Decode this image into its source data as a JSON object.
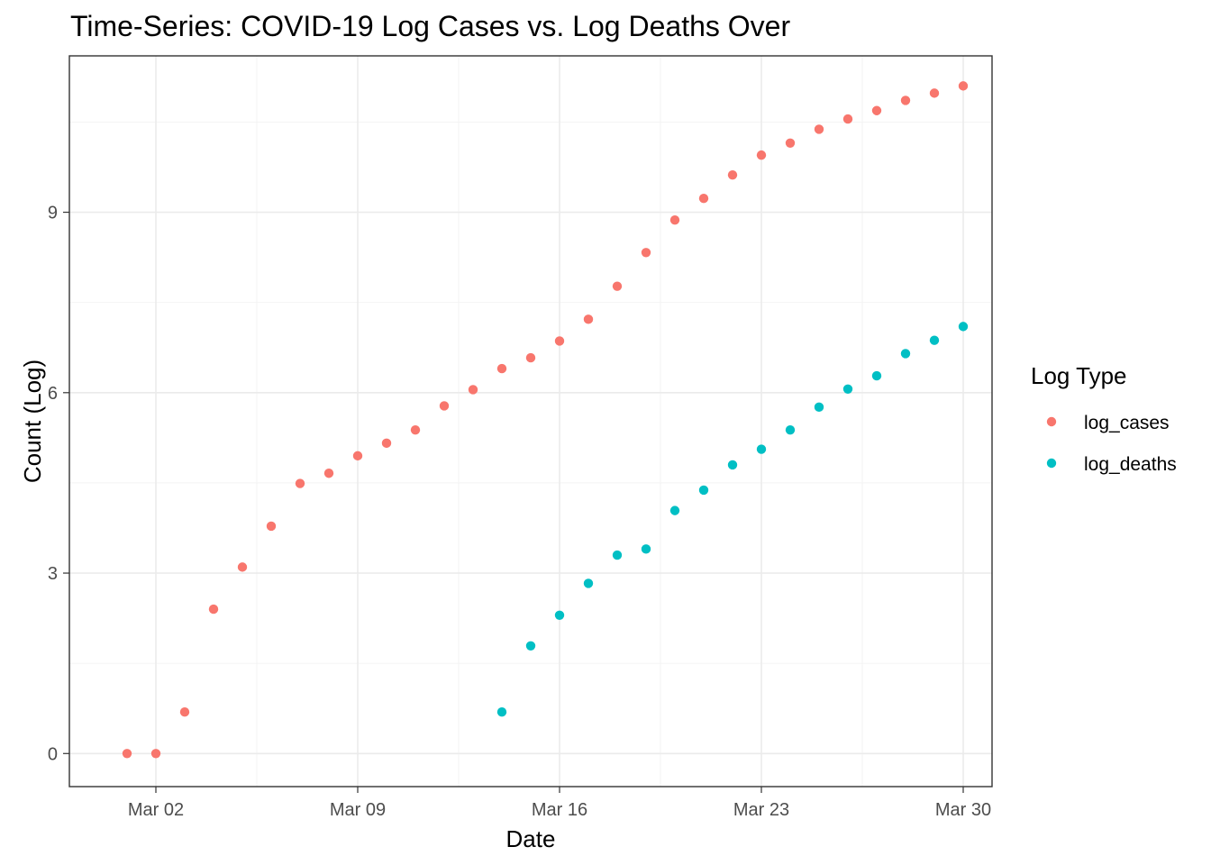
{
  "chart_data": {
    "type": "scatter",
    "title": "Time-Series: COVID-19 Log Cases vs. Log Deaths Over",
    "xlabel": "Date",
    "ylabel": "Count (Log)",
    "x_axis_type": "date",
    "xlim": [
      "2020-02-28",
      "2020-03-31"
    ],
    "ylim": [
      -0.55,
      11.6
    ],
    "x_ticks": [
      {
        "date": "2020-03-02",
        "label": "Mar 02"
      },
      {
        "date": "2020-03-09",
        "label": "Mar 09"
      },
      {
        "date": "2020-03-16",
        "label": "Mar 16"
      },
      {
        "date": "2020-03-23",
        "label": "Mar 23"
      },
      {
        "date": "2020-03-30",
        "label": "Mar 30"
      }
    ],
    "y_ticks": [
      {
        "value": 0,
        "label": "0"
      },
      {
        "value": 3,
        "label": "3"
      },
      {
        "value": 6,
        "label": "6"
      },
      {
        "value": 9,
        "label": "9"
      }
    ],
    "grid": true,
    "legend": {
      "title": "Log Type",
      "position": "right"
    },
    "series": [
      {
        "name": "log_cases",
        "color": "#F8766D",
        "points": [
          {
            "x": "2020-03-01",
            "y": 0.0
          },
          {
            "x": "2020-03-02",
            "y": 0.0
          },
          {
            "x": "2020-03-03",
            "y": 0.69
          },
          {
            "x": "2020-03-04",
            "y": 2.4
          },
          {
            "x": "2020-03-05",
            "y": 3.1
          },
          {
            "x": "2020-03-06",
            "y": 3.78
          },
          {
            "x": "2020-03-07",
            "y": 4.49
          },
          {
            "x": "2020-03-08",
            "y": 4.66
          },
          {
            "x": "2020-03-09",
            "y": 4.95
          },
          {
            "x": "2020-03-10",
            "y": 5.16
          },
          {
            "x": "2020-03-11",
            "y": 5.38
          },
          {
            "x": "2020-03-12",
            "y": 5.78
          },
          {
            "x": "2020-03-13",
            "y": 6.05
          },
          {
            "x": "2020-03-14",
            "y": 6.4
          },
          {
            "x": "2020-03-15",
            "y": 6.58
          },
          {
            "x": "2020-03-16",
            "y": 6.86
          },
          {
            "x": "2020-03-17",
            "y": 7.22
          },
          {
            "x": "2020-03-18",
            "y": 7.77
          },
          {
            "x": "2020-03-19",
            "y": 8.33
          },
          {
            "x": "2020-03-20",
            "y": 8.87
          },
          {
            "x": "2020-03-21",
            "y": 9.23
          },
          {
            "x": "2020-03-22",
            "y": 9.62
          },
          {
            "x": "2020-03-23",
            "y": 9.95
          },
          {
            "x": "2020-03-24",
            "y": 10.15
          },
          {
            "x": "2020-03-25",
            "y": 10.38
          },
          {
            "x": "2020-03-26",
            "y": 10.55
          },
          {
            "x": "2020-03-27",
            "y": 10.69
          },
          {
            "x": "2020-03-28",
            "y": 10.86
          },
          {
            "x": "2020-03-29",
            "y": 10.98
          },
          {
            "x": "2020-03-30",
            "y": 11.1
          }
        ]
      },
      {
        "name": "log_deaths",
        "color": "#00BFC4",
        "points": [
          {
            "x": "2020-03-14",
            "y": 0.69
          },
          {
            "x": "2020-03-15",
            "y": 1.79
          },
          {
            "x": "2020-03-16",
            "y": 2.3
          },
          {
            "x": "2020-03-17",
            "y": 2.83
          },
          {
            "x": "2020-03-18",
            "y": 3.3
          },
          {
            "x": "2020-03-19",
            "y": 3.4
          },
          {
            "x": "2020-03-20",
            "y": 4.04
          },
          {
            "x": "2020-03-21",
            "y": 4.38
          },
          {
            "x": "2020-03-22",
            "y": 4.8
          },
          {
            "x": "2020-03-23",
            "y": 5.06
          },
          {
            "x": "2020-03-24",
            "y": 5.38
          },
          {
            "x": "2020-03-25",
            "y": 5.76
          },
          {
            "x": "2020-03-26",
            "y": 6.06
          },
          {
            "x": "2020-03-27",
            "y": 6.28
          },
          {
            "x": "2020-03-28",
            "y": 6.65
          },
          {
            "x": "2020-03-29",
            "y": 6.87
          },
          {
            "x": "2020-03-30",
            "y": 7.1
          }
        ]
      }
    ]
  }
}
